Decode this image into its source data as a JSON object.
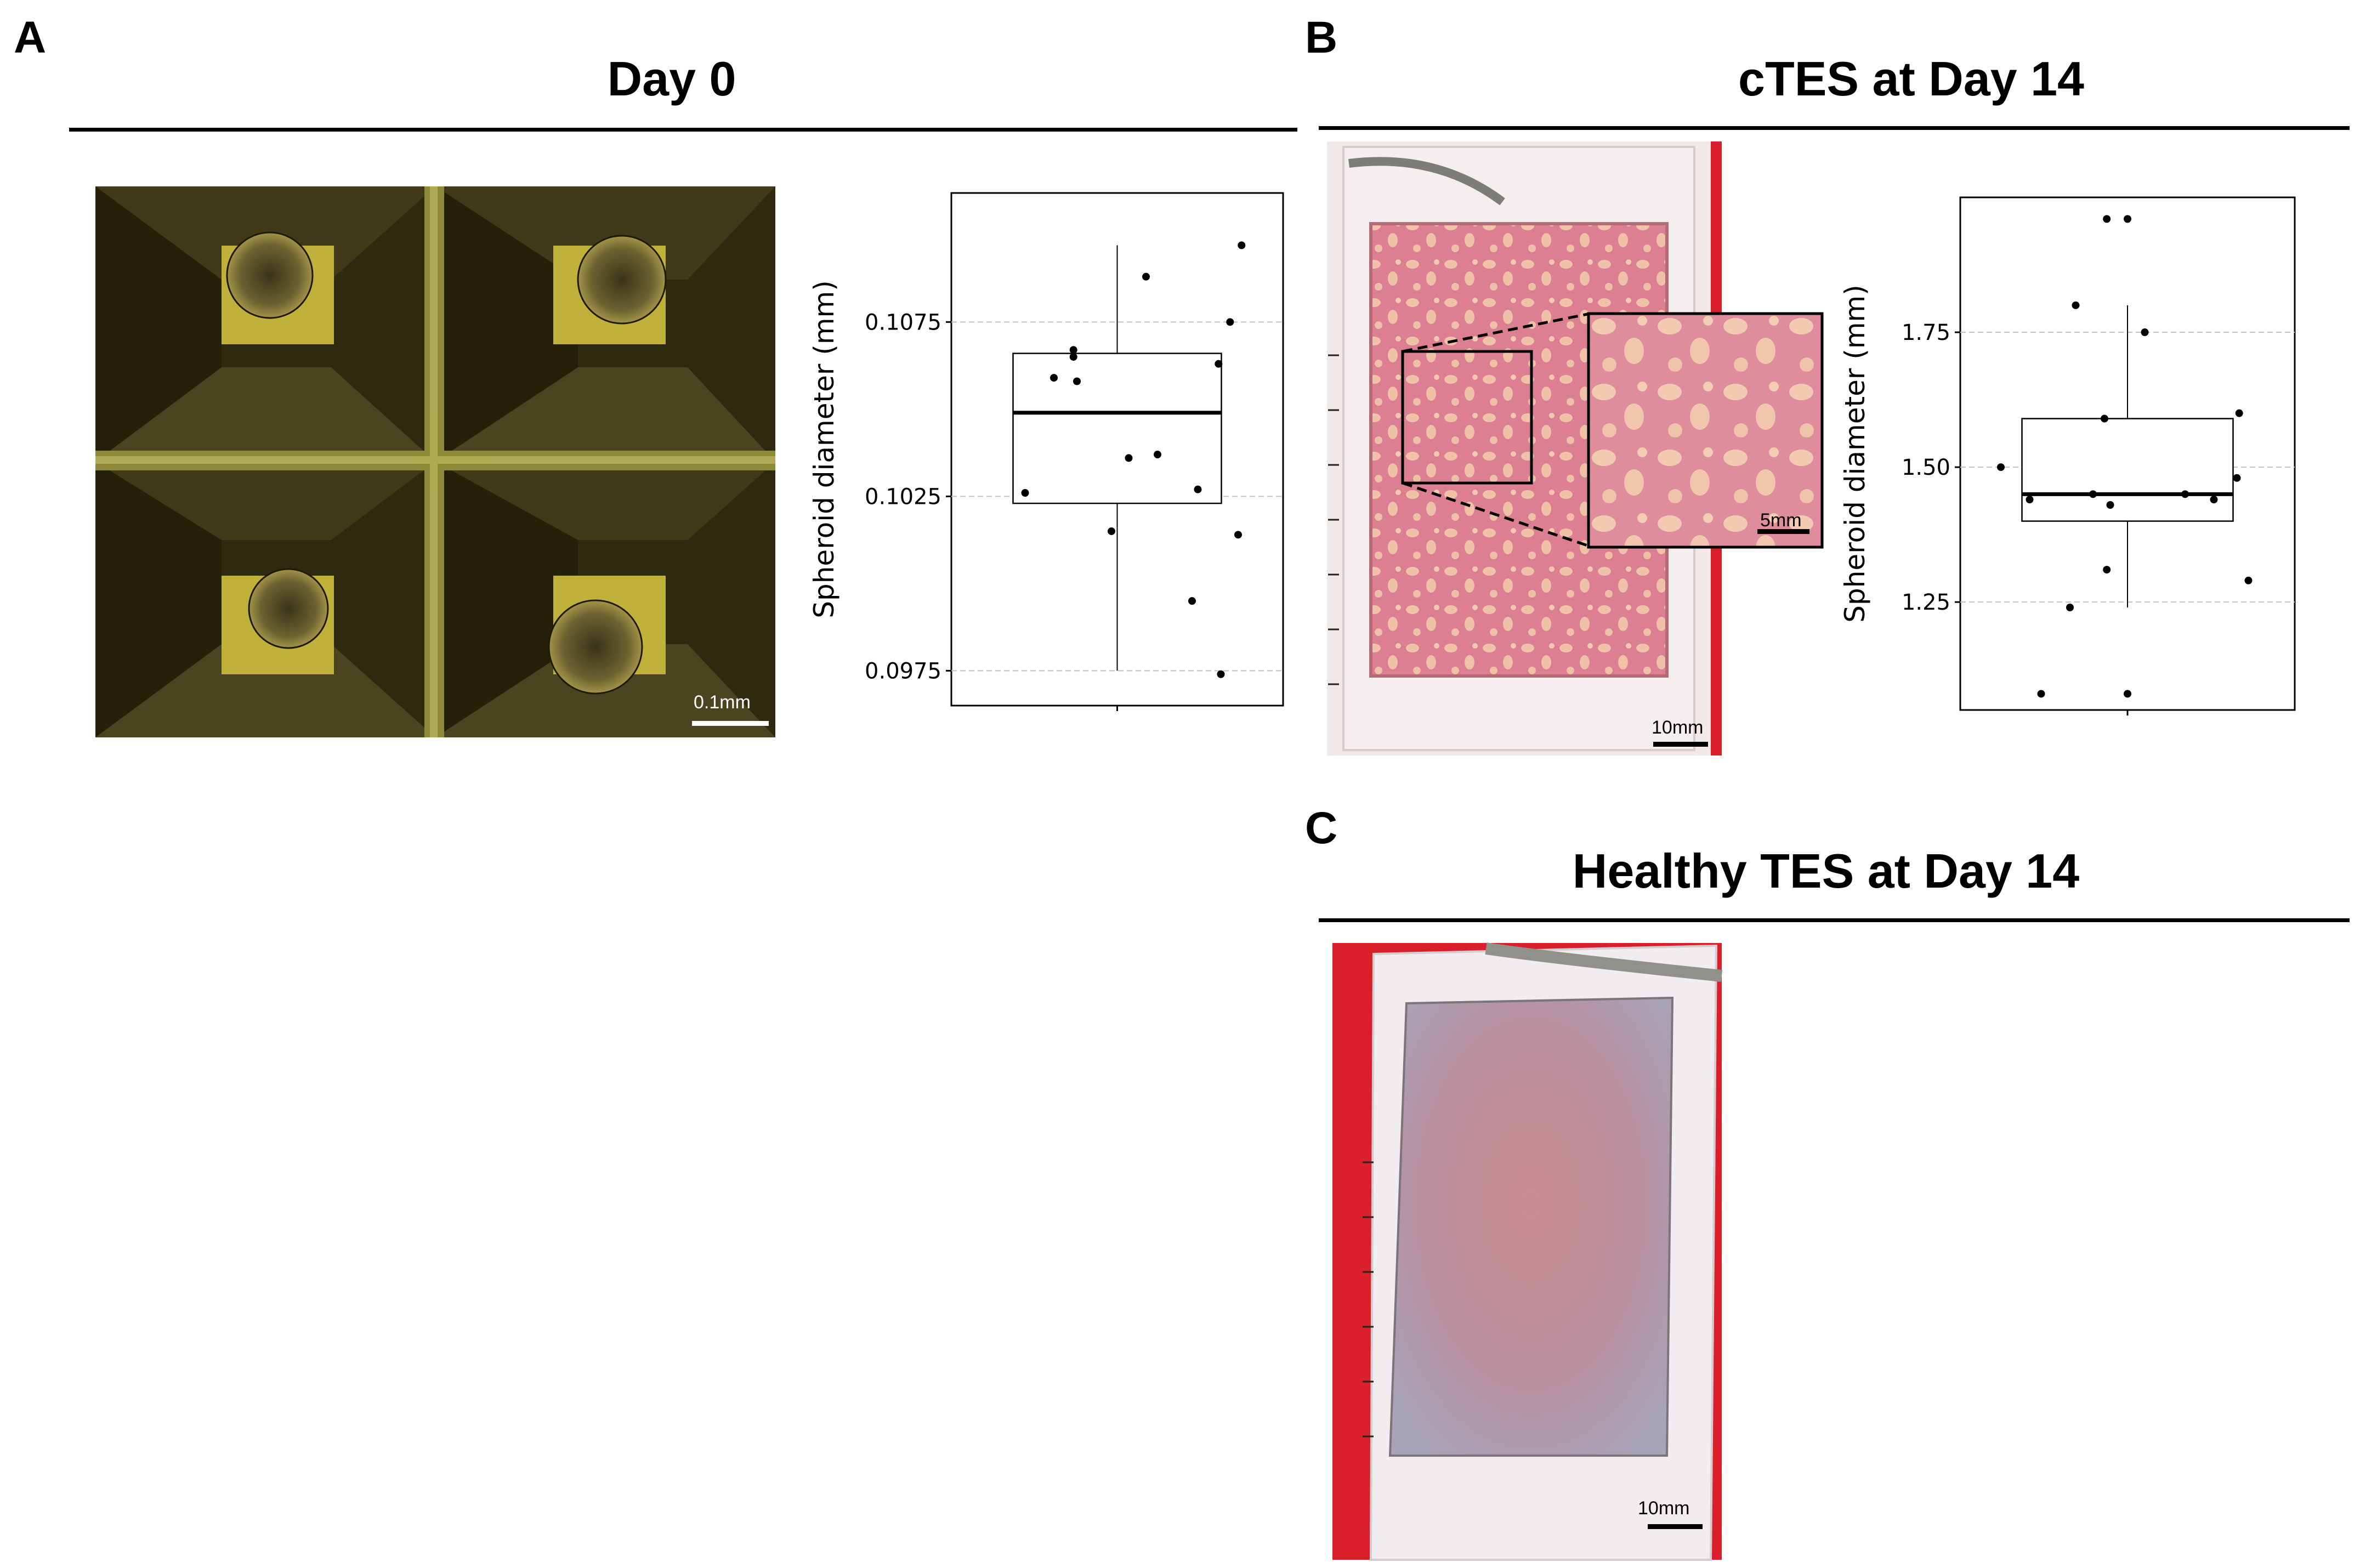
{
  "panels": {
    "a": {
      "letter": "A",
      "title": "Day 0",
      "scale_bar": "0.1mm"
    },
    "b": {
      "letter": "B",
      "title": "cTES at Day 14",
      "scale_bar": "10mm",
      "inset_scale_bar": "5mm"
    },
    "c": {
      "letter": "C",
      "title": "Healthy TES at Day 14",
      "scale_bar": "10mm"
    }
  },
  "colors": {
    "microscopy_bg": "#2e2a10",
    "microwell_yellow": "#bfb13a",
    "tissue_pink": "#e58f9a",
    "holder_white": "#f3ecee",
    "culture_red": "#d9202a"
  },
  "chart_data": [
    {
      "type": "box",
      "ylabel": "Spheroid diameter (mm)",
      "ylim": [
        0.0965,
        0.1112
      ],
      "yticks": [
        0.0975,
        0.1025,
        0.1075
      ],
      "ytick_labels": [
        "0.0975",
        "0.1025",
        "0.1075"
      ],
      "grid": "horizontal dashed",
      "box": {
        "q1": 0.1023,
        "median": 0.1049,
        "q3": 0.1066,
        "whisker_low": 0.0975,
        "whisker_high": 0.1097
      },
      "points": [
        {
          "x": -0.8,
          "y": 0.1026
        },
        {
          "x": -0.55,
          "y": 0.1059
        },
        {
          "x": -0.38,
          "y": 0.1065
        },
        {
          "x": -0.38,
          "y": 0.1067
        },
        {
          "x": -0.35,
          "y": 0.1058
        },
        {
          "x": -0.05,
          "y": 0.1015
        },
        {
          "x": 0.1,
          "y": 0.1036
        },
        {
          "x": 0.25,
          "y": 0.1088
        },
        {
          "x": 0.35,
          "y": 0.1037
        },
        {
          "x": 0.65,
          "y": 0.0995
        },
        {
          "x": 0.7,
          "y": 0.1027
        },
        {
          "x": 0.88,
          "y": 0.1063
        },
        {
          "x": 0.9,
          "y": 0.0974
        },
        {
          "x": 0.98,
          "y": 0.1075
        },
        {
          "x": 1.05,
          "y": 0.1014
        },
        {
          "x": 1.08,
          "y": 0.1097
        }
      ]
    },
    {
      "type": "box",
      "ylabel": "Spheroid diameter (mm)",
      "ylim": [
        1.05,
        2.0
      ],
      "yticks": [
        1.25,
        1.5,
        1.75
      ],
      "ytick_labels": [
        "1.25",
        "1.50",
        "1.75"
      ],
      "grid": "horizontal dashed",
      "box": {
        "q1": 1.4,
        "median": 1.45,
        "q3": 1.59,
        "whisker_low": 1.24,
        "whisker_high": 1.8
      },
      "points": [
        {
          "x": -1.1,
          "y": 1.5
        },
        {
          "x": -0.85,
          "y": 1.44
        },
        {
          "x": -0.75,
          "y": 1.08
        },
        {
          "x": -0.5,
          "y": 1.24
        },
        {
          "x": -0.45,
          "y": 1.8
        },
        {
          "x": -0.3,
          "y": 1.45
        },
        {
          "x": -0.2,
          "y": 1.59
        },
        {
          "x": -0.18,
          "y": 1.31
        },
        {
          "x": -0.18,
          "y": 1.96
        },
        {
          "x": -0.15,
          "y": 1.43
        },
        {
          "x": 0.0,
          "y": 1.08
        },
        {
          "x": 0.0,
          "y": 1.96
        },
        {
          "x": 0.15,
          "y": 1.75
        },
        {
          "x": 0.5,
          "y": 1.45
        },
        {
          "x": 0.75,
          "y": 1.44
        },
        {
          "x": 0.95,
          "y": 1.48
        },
        {
          "x": 0.97,
          "y": 1.6
        },
        {
          "x": 1.05,
          "y": 1.29
        }
      ]
    }
  ]
}
